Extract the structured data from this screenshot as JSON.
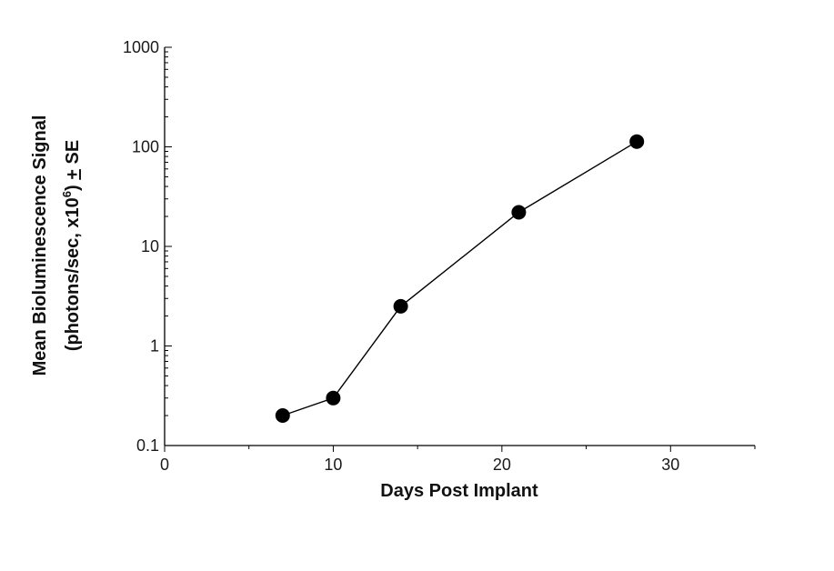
{
  "chart_data": {
    "type": "line",
    "xlabel": "Days Post Implant",
    "ylabel_line1": "Mean Bioluminescence Signal",
    "ylabel_line2_pre": "(photons/sec, x10",
    "ylabel_line2_sup": "6",
    "ylabel_line2_post": ") ",
    "ylabel_pm": "+",
    "ylabel_se": " SE",
    "x_scale": "linear",
    "y_scale": "log",
    "xlim": [
      0,
      35
    ],
    "ylim": [
      0.1,
      1000
    ],
    "x_ticks": [
      0,
      10,
      20,
      30
    ],
    "x_tick_labels": [
      "0",
      "10",
      "20",
      "30"
    ],
    "y_ticks": [
      0.1,
      1,
      10,
      100,
      1000
    ],
    "y_tick_labels": [
      "0.1",
      "1",
      "10",
      "100",
      "1000"
    ],
    "grid": false,
    "series": [
      {
        "x": [
          7,
          10,
          14,
          21,
          28
        ],
        "y": [
          0.2,
          0.3,
          2.5,
          22,
          113
        ],
        "color": "#000000",
        "marker": "filled-circle"
      }
    ]
  }
}
